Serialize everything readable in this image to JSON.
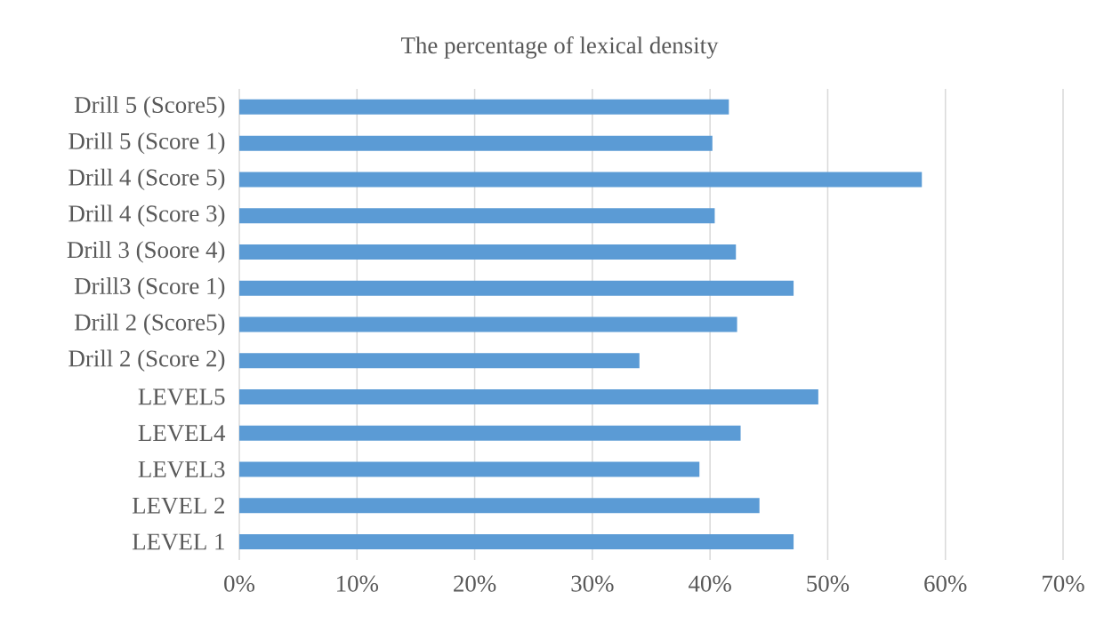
{
  "chart_data": {
    "type": "bar",
    "orientation": "horizontal",
    "title": "The percentage of lexical density",
    "categories": [
      "Drill 5 (Score5)",
      "Drill 5 (Score 1)",
      "Drill 4 (Score 5)",
      "Drill 4 (Score 3)",
      "Drill 3 (Soore 4)",
      "Drill3 (Score 1)",
      "Drill 2 (Score5)",
      "Drill 2 (Score 2)",
      "LEVEL5",
      "LEVEL4",
      "LEVEL3",
      "LEVEL 2",
      "LEVEL 1"
    ],
    "values": [
      41.6,
      40.2,
      58.0,
      40.4,
      42.2,
      47.1,
      42.3,
      34.0,
      49.2,
      42.6,
      39.1,
      44.2,
      47.1
    ],
    "color": "#5b9bd5",
    "xlim": [
      0,
      70
    ],
    "xticks": [
      {
        "value": 0,
        "label": "0%"
      },
      {
        "value": 10,
        "label": "10%"
      },
      {
        "value": 20,
        "label": "20%"
      },
      {
        "value": 30,
        "label": "30%"
      },
      {
        "value": 40,
        "label": "40%"
      },
      {
        "value": 50,
        "label": "50%"
      },
      {
        "value": 60,
        "label": "60%"
      },
      {
        "value": 70,
        "label": "70%"
      }
    ],
    "grid": "x"
  }
}
